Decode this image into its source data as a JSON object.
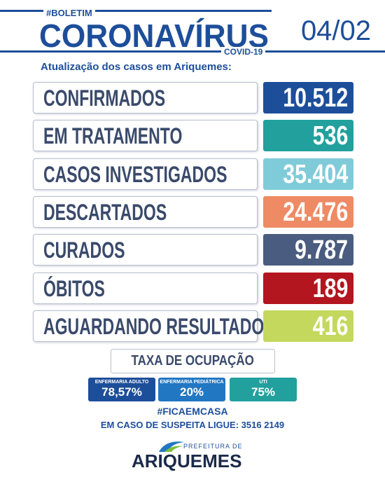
{
  "header": {
    "tag": "#BOLETIM",
    "title": "CORONAVÍRUS",
    "subtitle": "COVID-19",
    "date": "04/02",
    "intro": "Atualização dos casos em Ariquemes:"
  },
  "rows": [
    {
      "label": "CONFIRMADOS",
      "value": "10.512",
      "color": "#1d4e9a"
    },
    {
      "label": "EM TRATAMENTO",
      "value": "536",
      "color": "#22a09d"
    },
    {
      "label": "CASOS INVESTIGADOS",
      "value": "35.404",
      "color": "#80cbd9"
    },
    {
      "label": "DESCARTADOS",
      "value": "24.476",
      "color": "#ee8a64"
    },
    {
      "label": "CURADOS",
      "value": "9.787",
      "color": "#4a5c7f"
    },
    {
      "label": "ÓBITOS",
      "value": "189",
      "color": "#b3161f"
    },
    {
      "label": "AGUARDANDO RESULTADO",
      "value": "416",
      "color": "#c4d85e"
    }
  ],
  "occupancy": {
    "title": "TAXA DE OCUPAÇÃO",
    "items": [
      {
        "label": "ENFERMARIA ADULTO",
        "value": "78,57%",
        "color": "#1d4e9a"
      },
      {
        "label": "ENFERMARIA PEDIÁTRICA",
        "value": "20%",
        "color": "#2277c2"
      },
      {
        "label": "UTI",
        "value": "75%",
        "color": "#22a09d"
      }
    ]
  },
  "footer": {
    "hashtag": "#FICAEMCASA",
    "phone": "EM CASO DE SUSPEITA LIGUE: 3516 2149",
    "logo_top": "PREFEITURA DE",
    "logo_name": "ARIQUEMES"
  }
}
